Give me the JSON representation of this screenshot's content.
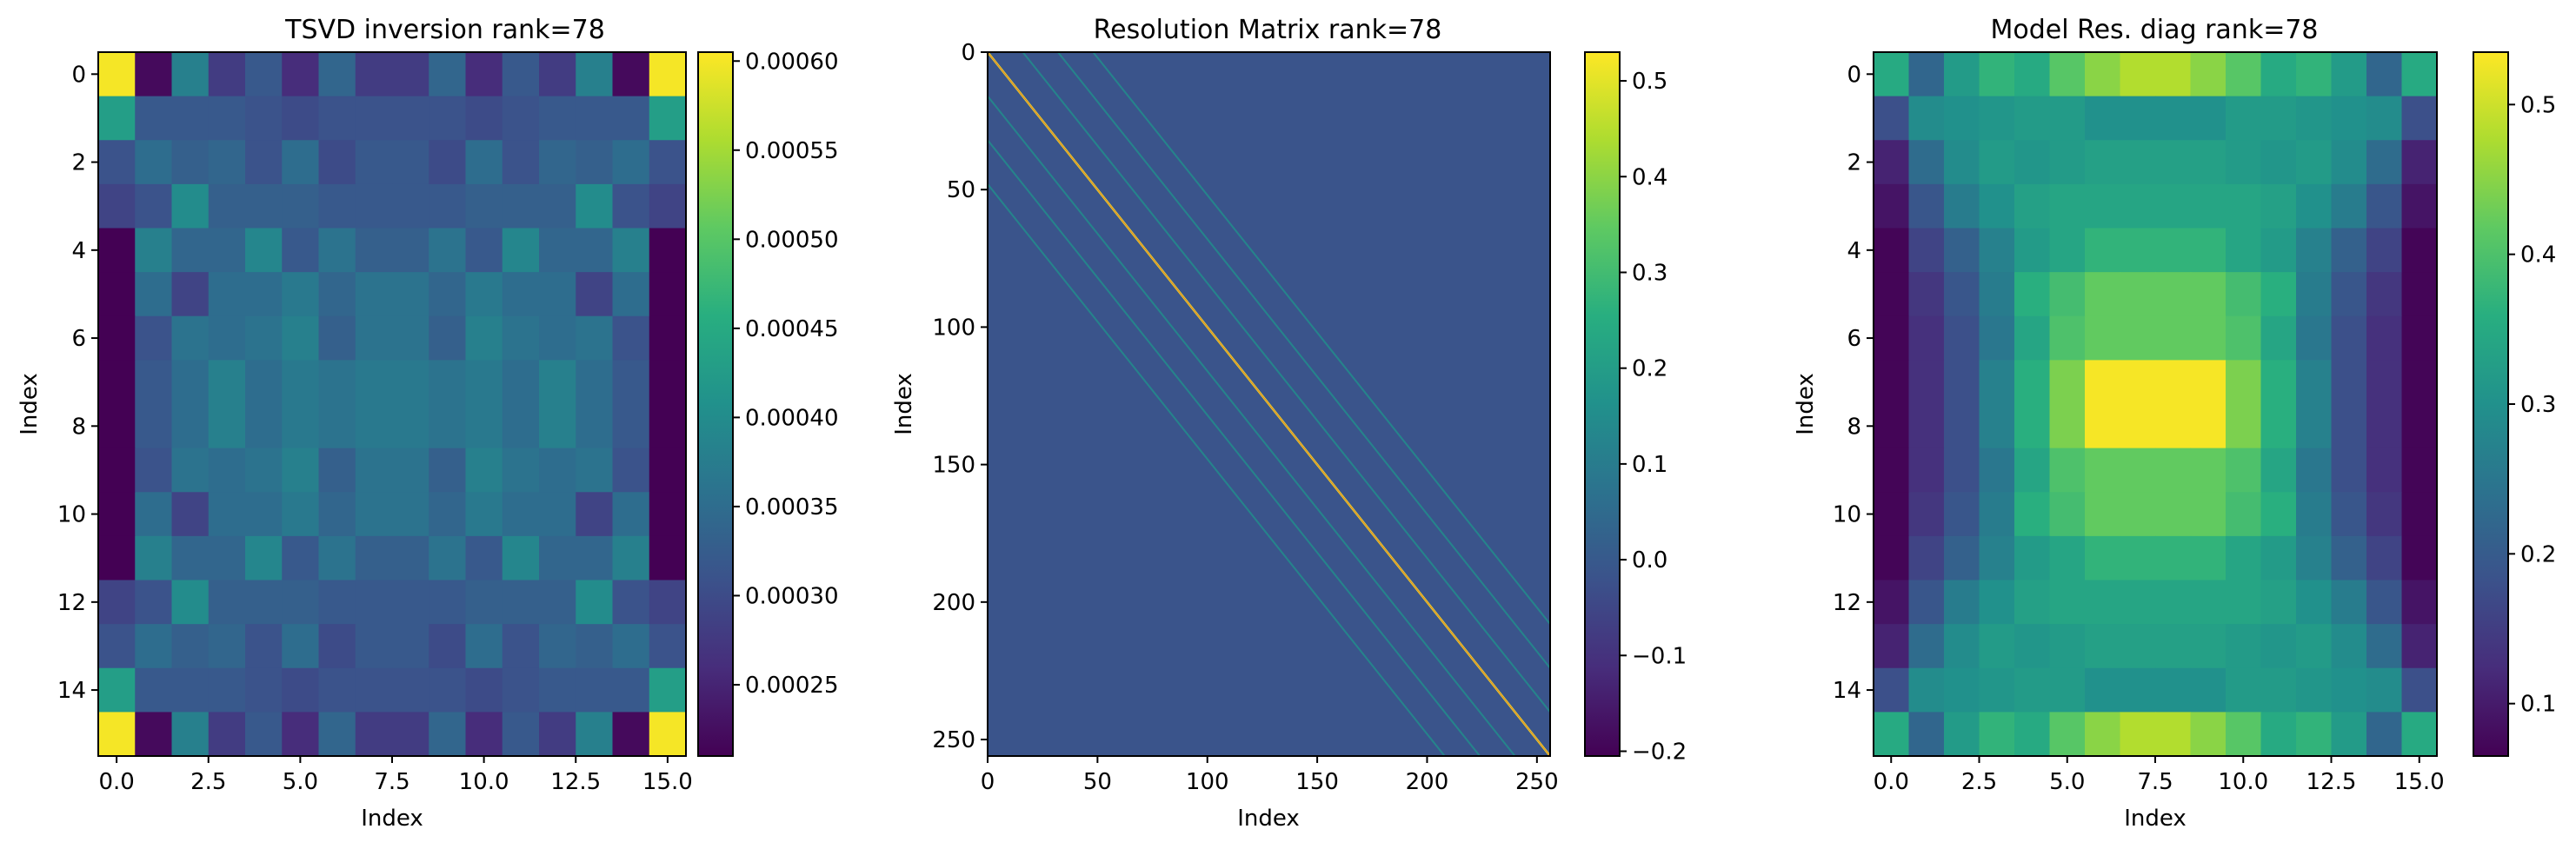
{
  "chart_data": [
    {
      "type": "heatmap",
      "title": "TSVD inversion rank=78",
      "xlabel": "Index",
      "ylabel": "Index",
      "grid_size": 16,
      "xticks": [
        0.0,
        2.5,
        5.0,
        7.5,
        10.0,
        12.5,
        15.0
      ],
      "xtick_labels": [
        "0.0",
        "2.5",
        "5.0",
        "7.5",
        "10.0",
        "12.5",
        "15.0"
      ],
      "yticks": [
        0,
        2,
        4,
        6,
        8,
        10,
        12,
        14
      ],
      "ytick_labels": [
        "0",
        "2",
        "4",
        "6",
        "8",
        "10",
        "12",
        "14"
      ],
      "colorbar": {
        "min": 0.00021,
        "max": 0.000605,
        "ticks": [
          0.00025,
          0.0003,
          0.00035,
          0.0004,
          0.00045,
          0.0005,
          0.00055,
          0.0006
        ],
        "tick_labels": [
          "0.00025",
          "0.00030",
          "0.00035",
          "0.00040",
          "0.00045",
          "0.00050",
          "0.00055",
          "0.00060"
        ]
      },
      "colormap": "viridis",
      "values_rows_top_quadrant": [
        [
          0.0006,
          0.00022,
          0.00038,
          0.00028,
          0.00032,
          0.00026,
          0.00034,
          0.00028
        ],
        [
          0.00043,
          0.00032,
          0.00032,
          0.00032,
          0.00031,
          0.0003,
          0.00031,
          0.00031
        ],
        [
          0.00031,
          0.00035,
          0.00033,
          0.00034,
          0.00031,
          0.00035,
          0.0003,
          0.00032
        ],
        [
          0.00029,
          0.00031,
          0.0004,
          0.00033,
          0.00033,
          0.00033,
          0.00032,
          0.00032
        ],
        [
          0.00021,
          0.00038,
          0.00034,
          0.00034,
          0.00039,
          0.00032,
          0.00036,
          0.00033
        ],
        [
          0.00021,
          0.00035,
          0.00029,
          0.00035,
          0.00035,
          0.00037,
          0.00034,
          0.00036
        ],
        [
          0.00021,
          0.00031,
          0.00036,
          0.00035,
          0.00036,
          0.00038,
          0.00033,
          0.00036
        ],
        [
          0.00021,
          0.00032,
          0.00035,
          0.00038,
          0.00035,
          0.00037,
          0.00036,
          0.00037
        ]
      ]
    },
    {
      "type": "heatmap",
      "title": "Resolution Matrix rank=78",
      "xlabel": "Index",
      "ylabel": "Index",
      "grid_size": 256,
      "xticks": [
        0,
        50,
        100,
        150,
        200,
        250
      ],
      "xtick_labels": [
        "0",
        "50",
        "100",
        "150",
        "200",
        "250"
      ],
      "yticks": [
        0,
        50,
        100,
        150,
        200,
        250
      ],
      "ytick_labels": [
        "0",
        "50",
        "100",
        "150",
        "200",
        "250"
      ],
      "colorbar": {
        "min": -0.205,
        "max": 0.53,
        "ticks": [
          -0.2,
          -0.1,
          0.0,
          0.1,
          0.2,
          0.3,
          0.4,
          0.5
        ],
        "tick_labels": [
          "−0.2",
          "−0.1",
          "0.0",
          "0.1",
          "0.2",
          "0.3",
          "0.4",
          "0.5"
        ]
      },
      "colormap": "viridis",
      "background_value": 0.0,
      "diagonal_value": 0.52,
      "off_diagonal_band_offsets": [
        16,
        32,
        48
      ],
      "off_diagonal_band_value": 0.15
    },
    {
      "type": "heatmap",
      "title": "Model Res. diag rank=78",
      "xlabel": "Index",
      "ylabel": "Index",
      "grid_size": 16,
      "xticks": [
        0.0,
        2.5,
        5.0,
        7.5,
        10.0,
        12.5,
        15.0
      ],
      "xtick_labels": [
        "0.0",
        "2.5",
        "5.0",
        "7.5",
        "10.0",
        "12.5",
        "15.0"
      ],
      "yticks": [
        0,
        2,
        4,
        6,
        8,
        10,
        12,
        14
      ],
      "ytick_labels": [
        "0",
        "2",
        "4",
        "6",
        "8",
        "10",
        "12",
        "14"
      ],
      "colorbar": {
        "min": 0.065,
        "max": 0.535,
        "ticks": [
          0.1,
          0.2,
          0.3,
          0.4,
          0.5
        ],
        "tick_labels": [
          "0.1",
          "0.2",
          "0.3",
          "0.4",
          "0.5"
        ]
      },
      "colormap": "viridis",
      "values_rows_top_quadrant": [
        [
          0.35,
          0.22,
          0.32,
          0.37,
          0.35,
          0.41,
          0.45,
          0.48
        ],
        [
          0.18,
          0.29,
          0.3,
          0.31,
          0.32,
          0.32,
          0.3,
          0.3
        ],
        [
          0.11,
          0.23,
          0.29,
          0.32,
          0.31,
          0.32,
          0.33,
          0.33
        ],
        [
          0.09,
          0.19,
          0.26,
          0.3,
          0.33,
          0.34,
          0.34,
          0.34
        ],
        [
          0.07,
          0.16,
          0.21,
          0.27,
          0.32,
          0.34,
          0.37,
          0.37
        ],
        [
          0.07,
          0.14,
          0.19,
          0.26,
          0.36,
          0.39,
          0.42,
          0.42
        ],
        [
          0.07,
          0.13,
          0.18,
          0.25,
          0.34,
          0.4,
          0.42,
          0.42
        ],
        [
          0.07,
          0.13,
          0.18,
          0.27,
          0.36,
          0.44,
          0.53,
          0.53
        ]
      ]
    }
  ]
}
